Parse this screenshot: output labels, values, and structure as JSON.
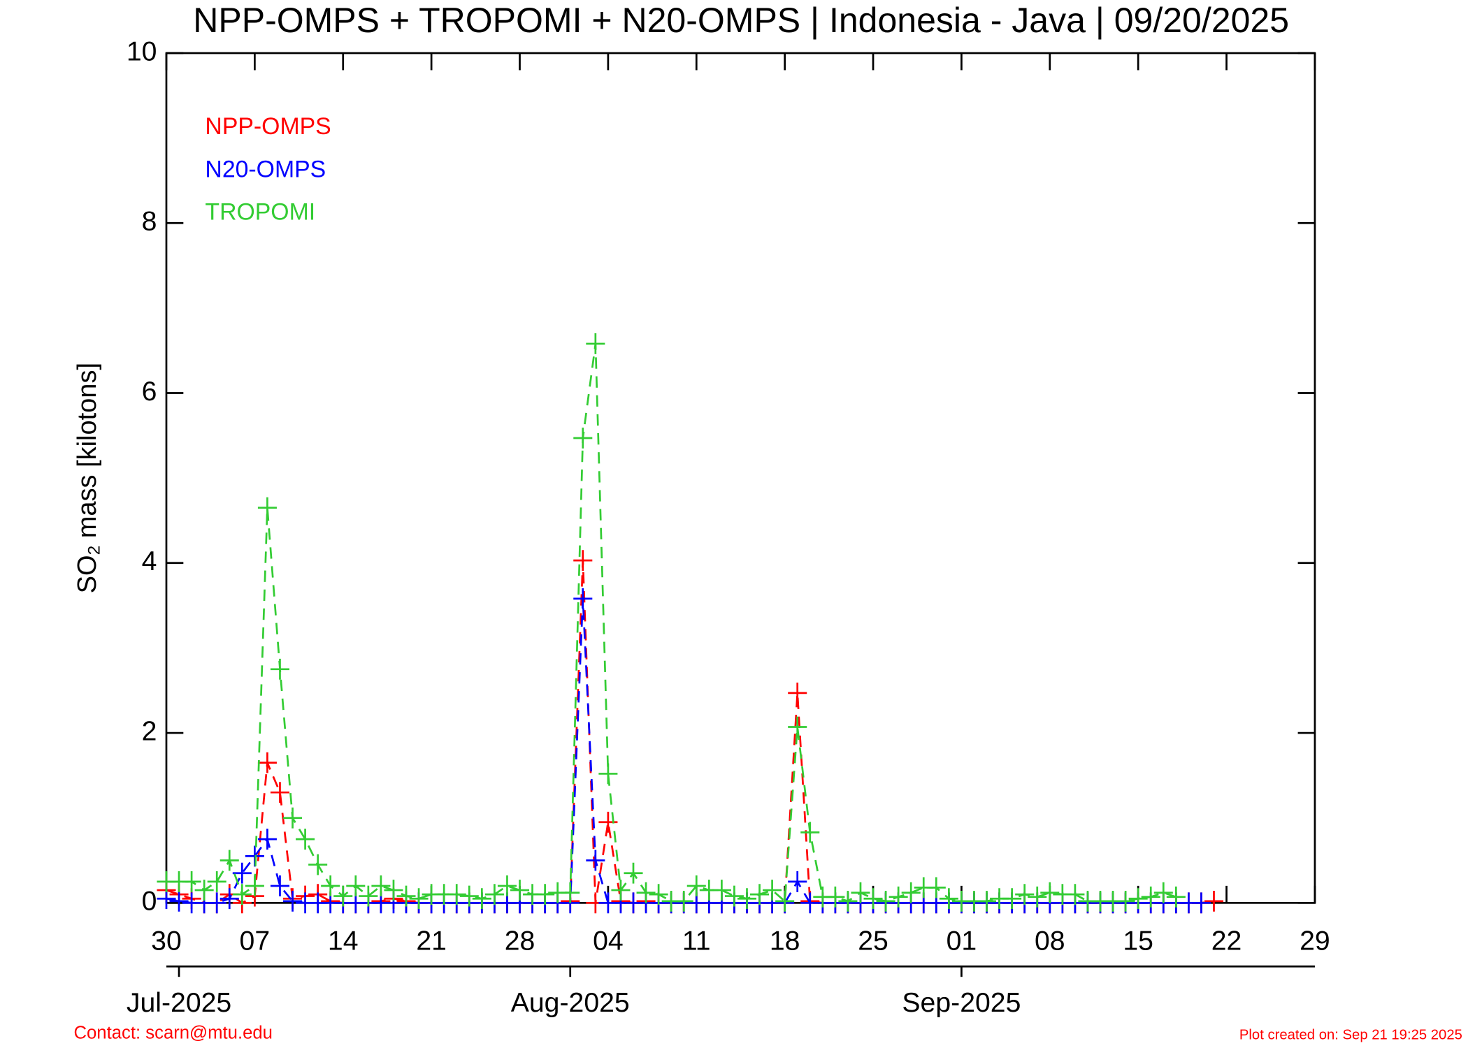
{
  "chart_data": {
    "type": "line",
    "title": "NPP-OMPS + TROPOMI + N20-OMPS | Indonesia - Java | 09/20/2025",
    "y_label": [
      "SO",
      "2",
      " mass [kilotons]"
    ],
    "contact": "Contact: scarn@mtu.edu",
    "plot_created": "Plot created on: Sep 21 19:25 2025",
    "legend": "upper left",
    "xlim": [
      "2025-06-30",
      "2025-09-29"
    ],
    "xticks": [
      {
        "value": "2025-06-30",
        "label": "30"
      },
      {
        "value": "2025-07-07",
        "label": "07"
      },
      {
        "value": "2025-07-14",
        "label": "14"
      },
      {
        "value": "2025-07-21",
        "label": "21"
      },
      {
        "value": "2025-07-28",
        "label": "28"
      },
      {
        "value": "2025-08-04",
        "label": "04"
      },
      {
        "value": "2025-08-11",
        "label": "11"
      },
      {
        "value": "2025-08-18",
        "label": "18"
      },
      {
        "value": "2025-08-25",
        "label": "25"
      },
      {
        "value": "2025-09-01",
        "label": "01"
      },
      {
        "value": "2025-09-08",
        "label": "08"
      },
      {
        "value": "2025-09-15",
        "label": "15"
      },
      {
        "value": "2025-09-22",
        "label": "22"
      },
      {
        "value": "2025-09-29",
        "label": "29"
      }
    ],
    "month_ticks": [
      {
        "value": "2025-07-01",
        "label": "Jul-2025"
      },
      {
        "value": "2025-08-01",
        "label": "Aug-2025"
      },
      {
        "value": "2025-09-01",
        "label": "Sep-2025"
      }
    ],
    "ylim": [
      0,
      10
    ],
    "yticks": [
      0,
      2,
      4,
      6,
      8,
      10
    ],
    "x": [
      "2025-06-30",
      "2025-07-01",
      "2025-07-02",
      "2025-07-03",
      "2025-07-04",
      "2025-07-05",
      "2025-07-06",
      "2025-07-07",
      "2025-07-08",
      "2025-07-09",
      "2025-07-10",
      "2025-07-11",
      "2025-07-12",
      "2025-07-13",
      "2025-07-14",
      "2025-07-15",
      "2025-07-16",
      "2025-07-17",
      "2025-07-18",
      "2025-07-19",
      "2025-07-20",
      "2025-07-21",
      "2025-07-22",
      "2025-07-23",
      "2025-07-24",
      "2025-07-25",
      "2025-07-26",
      "2025-07-27",
      "2025-07-28",
      "2025-07-29",
      "2025-07-30",
      "2025-07-31",
      "2025-08-01",
      "2025-08-02",
      "2025-08-03",
      "2025-08-04",
      "2025-08-05",
      "2025-08-06",
      "2025-08-07",
      "2025-08-08",
      "2025-08-09",
      "2025-08-10",
      "2025-08-11",
      "2025-08-12",
      "2025-08-13",
      "2025-08-14",
      "2025-08-15",
      "2025-08-16",
      "2025-08-17",
      "2025-08-18",
      "2025-08-19",
      "2025-08-20",
      "2025-08-21",
      "2025-08-22",
      "2025-08-23",
      "2025-08-24",
      "2025-08-25",
      "2025-08-26",
      "2025-08-27",
      "2025-08-28",
      "2025-08-29",
      "2025-08-30",
      "2025-08-31",
      "2025-09-01",
      "2025-09-02",
      "2025-09-03",
      "2025-09-04",
      "2025-09-05",
      "2025-09-06",
      "2025-09-07",
      "2025-09-08",
      "2025-09-09",
      "2025-09-10",
      "2025-09-11",
      "2025-09-12",
      "2025-09-13",
      "2025-09-14",
      "2025-09-15",
      "2025-09-16",
      "2025-09-17",
      "2025-09-18",
      "2025-09-19",
      "2025-09-20",
      "2025-09-21"
    ],
    "series": [
      {
        "name": "NPP-OMPS",
        "color": "#ff0000",
        "values": [
          0.15,
          0.1,
          0.05,
          0,
          0,
          0.1,
          0,
          0.08,
          1.65,
          1.3,
          0.05,
          0.08,
          0.1,
          0.02,
          0,
          0,
          0,
          0.02,
          0.05,
          0.02,
          0,
          0,
          0,
          0,
          0,
          0,
          0,
          0,
          0,
          0,
          0,
          0,
          0.02,
          4.03,
          0,
          0.95,
          0.02,
          0,
          0.02,
          0,
          0,
          0,
          0,
          0,
          0,
          0,
          0,
          0,
          0,
          0,
          2.47,
          0.02,
          0,
          0,
          0,
          0,
          0,
          0,
          0,
          0,
          0,
          0,
          0,
          0,
          0,
          0,
          0,
          0,
          0,
          0,
          0,
          0,
          0,
          0,
          0,
          0,
          0,
          0,
          0,
          0,
          0,
          0,
          0,
          0.02
        ]
      },
      {
        "name": "N20-OMPS",
        "color": "#0000ff",
        "values": [
          0.05,
          0.02,
          0,
          0,
          0,
          0.05,
          0.35,
          0.55,
          0.75,
          0.2,
          0.02,
          0,
          0,
          0,
          0,
          0,
          0,
          0,
          0,
          0,
          0,
          0,
          0,
          0,
          0,
          0,
          0,
          0,
          0,
          0,
          0,
          0,
          0,
          3.58,
          0.5,
          0,
          0,
          0,
          0,
          0,
          0,
          0,
          0,
          0,
          0,
          0,
          0,
          0,
          0,
          0,
          0.25,
          0,
          0,
          0,
          0,
          0,
          0,
          0,
          0,
          0,
          0,
          0,
          0,
          0,
          0,
          0,
          0,
          0,
          0,
          0,
          0,
          0,
          0,
          0,
          0,
          0,
          0,
          0,
          0,
          0,
          0,
          0,
          0,
          null
        ]
      },
      {
        "name": "TROPOMI",
        "color": "#33cc33",
        "values": [
          0.25,
          0.25,
          0.25,
          0.15,
          0.25,
          0.5,
          0.1,
          0.2,
          4.65,
          2.75,
          1.0,
          0.75,
          0.45,
          0.2,
          0.08,
          0.2,
          0.08,
          0.2,
          0.15,
          0.08,
          0.05,
          0.1,
          0.1,
          0.1,
          0.08,
          0.05,
          0.1,
          0.2,
          0.15,
          0.1,
          0.1,
          0.12,
          0.12,
          5.47,
          6.58,
          1.52,
          0.15,
          0.35,
          0.12,
          0.1,
          0.02,
          0.02,
          0.2,
          0.15,
          0.15,
          0.08,
          0.05,
          0.1,
          0.15,
          0.02,
          2.07,
          0.83,
          0.07,
          0.07,
          0.02,
          0.12,
          0.05,
          0.02,
          0.07,
          0.12,
          0.18,
          0.18,
          0.05,
          0.02,
          0.02,
          0.02,
          0.05,
          0.05,
          0.1,
          0.07,
          0.12,
          0.1,
          0.1,
          0.02,
          0.02,
          0.02,
          0.02,
          0.05,
          0.07,
          0.12,
          0.07,
          null,
          null,
          null
        ]
      }
    ]
  }
}
